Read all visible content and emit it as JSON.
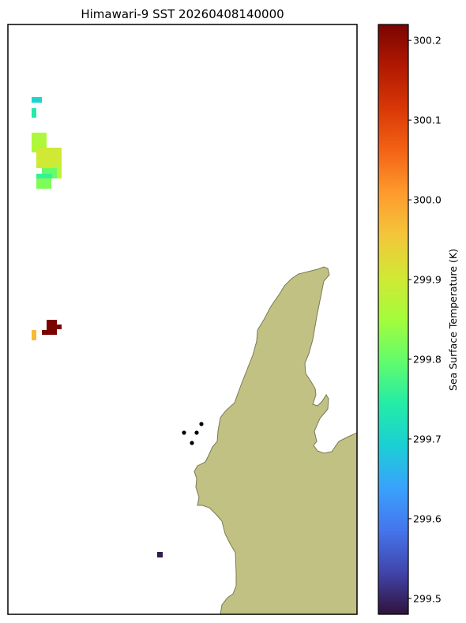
{
  "title": "Himawari-9 SST 20260408140000",
  "colors": {
    "land_fill": "#c0c183",
    "land_stroke": "#7a7a55",
    "frame": "#000000",
    "station": "#000000"
  },
  "colorbar": {
    "label": "Sea Surface Temperature (K)",
    "colormap": "turbo",
    "range": [
      299.48,
      300.22
    ],
    "ticks": [
      {
        "value": 299.5,
        "label": "299.5"
      },
      {
        "value": 299.6,
        "label": "299.6"
      },
      {
        "value": 299.7,
        "label": "299.7"
      },
      {
        "value": 299.8,
        "label": "299.8"
      },
      {
        "value": 299.9,
        "label": "299.9"
      },
      {
        "value": 300.0,
        "label": "300.0"
      },
      {
        "value": 300.1,
        "label": "300.1"
      },
      {
        "value": 300.2,
        "label": "300.2"
      }
    ]
  },
  "sst_pixels": [
    {
      "name": "sst-pixel",
      "value": 299.7
    },
    {
      "name": "sst-pixel",
      "value": 299.74
    },
    {
      "name": "sst-pixel",
      "value": 299.86
    },
    {
      "name": "sst-pixel",
      "value": 299.9
    },
    {
      "name": "sst-pixel",
      "value": 299.88
    },
    {
      "name": "sst-pixel",
      "value": 299.8
    },
    {
      "name": "sst-pixel",
      "value": 299.76
    },
    {
      "name": "sst-pixel",
      "value": 299.82
    },
    {
      "name": "sst-pixel",
      "value": 300.22
    },
    {
      "name": "sst-pixel",
      "value": 299.97
    },
    {
      "name": "sst-pixel",
      "value": 299.49
    }
  ],
  "stations": [
    {
      "name": "station-dot"
    },
    {
      "name": "station-dot"
    },
    {
      "name": "station-dot"
    },
    {
      "name": "station-dot"
    }
  ]
}
